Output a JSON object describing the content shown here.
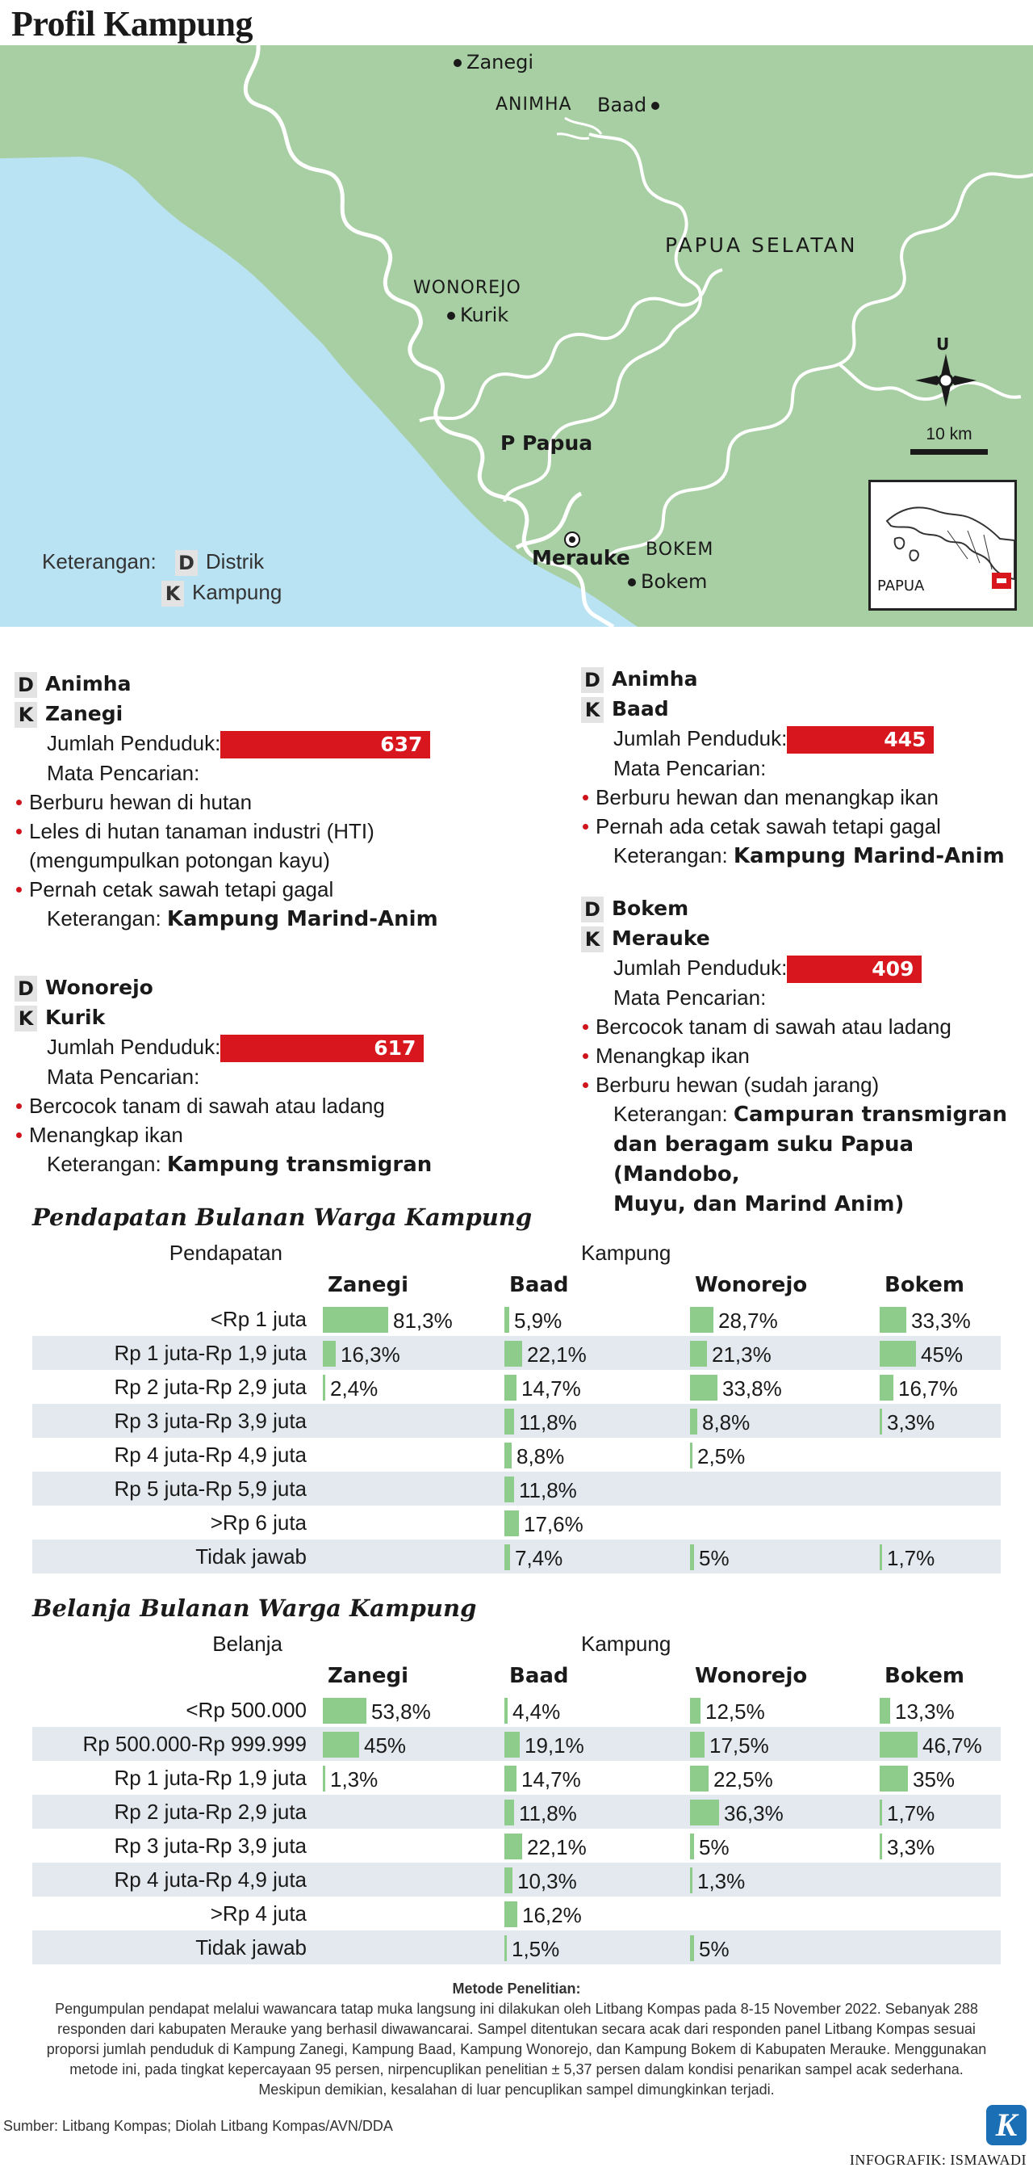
{
  "title": "Profil Kampung",
  "map": {
    "places": {
      "zanegi": "Zanegi",
      "animha": "ANIMHA",
      "baad": "Baad",
      "papua_selatan": "PAPUA SELATAN",
      "wonorejo": "WONOREJO",
      "kurik": "Kurik",
      "p_papua": "P Papua",
      "merauke": "Merauke",
      "bokem_d": "BOKEM",
      "bokem_k": "Bokem"
    },
    "compass_label": "U",
    "scale_label": "10 km",
    "inset_label": "PAPUA",
    "legend": {
      "title": "Keterangan:",
      "d_code": "D",
      "d_label": "Distrik",
      "k_code": "K",
      "k_label": "Kampung"
    },
    "colors": {
      "land": "#a8cea3",
      "sea": "#b9e3f3",
      "river": "#ffffff"
    }
  },
  "profiles": {
    "zanegi": {
      "d": "Animha",
      "k": "Zanegi",
      "pop_label": "Jumlah Penduduk:",
      "pop": 637,
      "livelihood_label": "Mata Pencarian:",
      "items": [
        "Berburu hewan di hutan",
        "Leles di hutan tanaman industri (HTI)",
        "Pernah cetak sawah tetapi gagal"
      ],
      "item_cont": "(mengumpulkan potongan kayu)",
      "note_label": "Keterangan:",
      "note": "Kampung Marind-Anim"
    },
    "kurik": {
      "d": "Wonorejo",
      "k": "Kurik",
      "pop_label": "Jumlah Penduduk:",
      "pop": 617,
      "livelihood_label": "Mata Pencarian:",
      "items": [
        "Bercocok tanam di sawah atau ladang",
        "Menangkap ikan"
      ],
      "note_label": "Keterangan:",
      "note": "Kampung transmigran"
    },
    "baad": {
      "d": "Animha",
      "k": "Baad",
      "pop_label": "Jumlah Penduduk:",
      "pop": 445,
      "livelihood_label": "Mata Pencarian:",
      "items": [
        "Berburu hewan dan menangkap ikan",
        "Pernah ada cetak sawah tetapi gagal"
      ],
      "note_label": "Keterangan:",
      "note": "Kampung Marind-Anim"
    },
    "bokem": {
      "d": "Bokem",
      "k": "Merauke",
      "pop_label": "Jumlah Penduduk:",
      "pop": 409,
      "livelihood_label": "Mata Pencarian:",
      "items": [
        "Bercocok tanam di sawah atau ladang",
        "Menangkap ikan",
        "Berburu hewan (sudah jarang)"
      ],
      "note_label": "Keterangan:",
      "note_lines": [
        "Campuran transmigran",
        "dan beragam suku Papua (Mandobo,",
        "Muyu, dan Marind Anim)"
      ]
    }
  },
  "income": {
    "title": "Pendapatan Bulanan Warga Kampung",
    "row_header": "Pendapatan",
    "group_header": "Kampung",
    "columns": [
      "Zanegi",
      "Baad",
      "Wonorejo",
      "Bokem"
    ],
    "rows": [
      {
        "label": "<Rp 1 juta",
        "values": [
          "81,3%",
          "5,9%",
          "28,7%",
          "33,3%"
        ]
      },
      {
        "label": "Rp 1 juta-Rp 1,9 juta",
        "values": [
          "16,3%",
          "22,1%",
          "21,3%",
          "45%"
        ]
      },
      {
        "label": "Rp 2 juta-Rp 2,9 juta",
        "values": [
          "2,4%",
          "14,7%",
          "33,8%",
          "16,7%"
        ]
      },
      {
        "label": "Rp 3 juta-Rp 3,9 juta",
        "values": [
          "",
          "11,8%",
          "8,8%",
          "3,3%"
        ]
      },
      {
        "label": "Rp 4 juta-Rp 4,9 juta",
        "values": [
          "",
          "8,8%",
          "2,5%",
          ""
        ]
      },
      {
        "label": "Rp 5 juta-Rp 5,9 juta",
        "values": [
          "",
          "11,8%",
          "",
          ""
        ]
      },
      {
        "label": ">Rp 6 juta",
        "values": [
          "",
          "17,6%",
          "",
          ""
        ]
      },
      {
        "label": "Tidak jawab",
        "values": [
          "",
          "7,4%",
          "5%",
          "1,7%"
        ]
      }
    ]
  },
  "spending": {
    "title": "Belanja Bulanan Warga Kampung",
    "row_header": "Belanja",
    "group_header": "Kampung",
    "columns": [
      "Zanegi",
      "Baad",
      "Wonorejo",
      "Bokem"
    ],
    "rows": [
      {
        "label": "<Rp 500.000",
        "values": [
          "53,8%",
          "4,4%",
          "12,5%",
          "13,3%"
        ]
      },
      {
        "label": "Rp 500.000-Rp 999.999",
        "values": [
          "45%",
          "19,1%",
          "17,5%",
          "46,7%"
        ]
      },
      {
        "label": "Rp 1 juta-Rp 1,9 juta",
        "values": [
          "1,3%",
          "14,7%",
          "22,5%",
          "35%"
        ]
      },
      {
        "label": "Rp 2 juta-Rp 2,9 juta",
        "values": [
          "",
          "11,8%",
          "36,3%",
          "1,7%"
        ]
      },
      {
        "label": "Rp 3 juta-Rp 3,9 juta",
        "values": [
          "",
          "22,1%",
          "5%",
          "3,3%"
        ]
      },
      {
        "label": "Rp 4 juta-Rp 4,9 juta",
        "values": [
          "",
          "10,3%",
          "1,3%",
          ""
        ]
      },
      {
        "label": ">Rp 4 juta",
        "values": [
          "",
          "16,2%",
          "",
          ""
        ]
      },
      {
        "label": "Tidak jawab",
        "values": [
          "",
          "1,5%",
          "5%",
          ""
        ]
      }
    ]
  },
  "method": {
    "title": "Metode Penelitian:",
    "lines": [
      "Pengumpulan pendapat melalui wawancara tatap muka langsung ini dilakukan oleh Litbang Kompas pada 8-15 November 2022. Sebanyak 288",
      "responden dari kabupaten Merauke yang berhasil diwawancarai.  Sampel ditentukan secara acak dari responden panel Litbang Kompas sesuai",
      "proporsi jumlah penduduk di Kampung Zanegi, Kampung Baad, Kampung Wonorejo, dan Kampung Bokem di Kabupaten Merauke. Menggunakan",
      "metode ini, pada tingkat kepercayaan 95 persen, nirpencuplikan penelitian ± 5,37 persen dalam kondisi penarikan sampel acak sederhana.",
      "Meskipun demikian, kesalahan di luar pencuplikan sampel dimungkinkan terjadi."
    ]
  },
  "source": "Sumber: Litbang Kompas; Diolah Litbang Kompas/AVN/DDA",
  "logo": "K",
  "credit": "INFOGRAFIK: ISMAWADI"
}
